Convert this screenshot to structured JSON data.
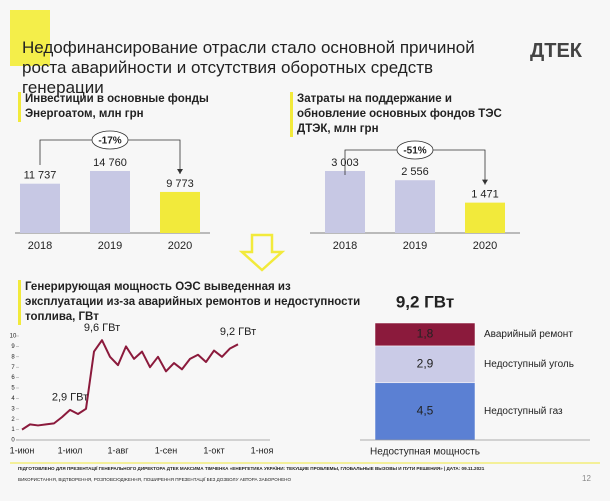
{
  "title": "Недофинансирование отрасли стало основной причиной роста аварийности и отсутствия оборотных средств генерации",
  "logo": "ДТЕК",
  "footer": [
    "ПІДГОТОВЛЕНО ДЛЯ ПРЕЗЕНТАЦІЇ ГЕНЕРАЛЬНОГО ДИРЕКТОРА ДТЕК МАКСИМА ТІМЧЕНКА «ЕНЕРГЕТИКА УКРАЇНИ: ТЕКУЩИЕ ПРОБЛЕМЫ, ГЛОБАЛЬНЫЕ ВЫЗОВЫ И ПУТИ РЕШЕНИЯ» | ДАТА: 09.11.2021",
    "ВИКОРИСТАННЯ, ВІДТВОРЕННЯ, РОЗПОВСЮДЖЕННЯ, ПОШИРЕННЯ ПРЕЗЕНТАЦІЇ БЕЗ ДОЗВОЛУ АВТОРА ЗАБОРОНЕНО"
  ],
  "page_number": "12",
  "chart_data": [
    {
      "type": "bar",
      "title": "Инвестиции в основные фонды Энергоатом, млн грн",
      "categories": [
        "2018",
        "2019",
        "2020"
      ],
      "values": [
        11737,
        14760,
        9773
      ],
      "value_labels": [
        "11 737",
        "14 760",
        "9 773"
      ],
      "colors": [
        "#c7c8e4",
        "#c7c8e4",
        "#f2ea3b"
      ],
      "annotation": "-17%"
    },
    {
      "type": "bar",
      "title": "Затраты на поддержание и обновление основных фондов ТЭС ДТЭК, млн грн",
      "categories": [
        "2018",
        "2019",
        "2020"
      ],
      "values": [
        3003,
        2556,
        1471
      ],
      "value_labels": [
        "3 003",
        "2 556",
        "1 471"
      ],
      "colors": [
        "#c7c8e4",
        "#c7c8e4",
        "#f2ea3b"
      ],
      "annotation": "-51%"
    },
    {
      "type": "line",
      "title": "Генерирующая мощность ОЭС выведенная из эксплуатации из-за аварийных ремонтов и недоступности топлива, ГВт",
      "categories": [
        "1-июн",
        null,
        null,
        null,
        null,
        null,
        "1-июл",
        null,
        null,
        null,
        null,
        null,
        "1-авг",
        null,
        null,
        null,
        null,
        null,
        "1-сен",
        null,
        null,
        null,
        null,
        null,
        "1-окт",
        null,
        null,
        null,
        null,
        null,
        "1-ноя"
      ],
      "values": [
        1.0,
        1.5,
        1.4,
        1.5,
        1.6,
        2.2,
        2.9,
        2.5,
        3.0,
        8.5,
        9.6,
        8.0,
        7.2,
        9.0,
        7.8,
        8.5,
        7.0,
        8.0,
        6.6,
        7.4,
        6.8,
        7.8,
        8.2,
        7.5,
        8.6,
        8.0,
        8.8,
        9.2,
        null,
        null,
        null
      ],
      "value_labels": [
        null,
        null,
        null,
        null,
        null,
        null,
        "2,9 ГВт",
        null,
        null,
        null,
        "9,6 ГВт",
        null,
        null,
        null,
        null,
        null,
        null,
        null,
        null,
        null,
        null,
        null,
        null,
        null,
        null,
        null,
        null,
        "9,2 ГВт",
        null,
        null,
        null
      ],
      "color": "#8b1a3c",
      "ylim": [
        0,
        10
      ],
      "yticks": [
        0,
        1,
        2,
        3,
        4,
        5,
        6,
        7,
        8,
        9,
        10
      ]
    },
    {
      "type": "stacked_bar",
      "title": "9,2 ГВт",
      "categories": [
        "Недоступная мощность"
      ],
      "series": [
        {
          "name": "Аварийный ремонт",
          "color": "#8b1a3c",
          "values": [
            1.8
          ],
          "value_labels": [
            "1,8"
          ]
        },
        {
          "name": "Недоступный уголь",
          "color": "#cacbe7",
          "values": [
            2.9
          ],
          "value_labels": [
            "2,9"
          ]
        },
        {
          "name": "Недоступный газ",
          "color": "#5b80d3",
          "values": [
            4.5
          ],
          "value_labels": [
            "4,5"
          ]
        }
      ]
    }
  ]
}
